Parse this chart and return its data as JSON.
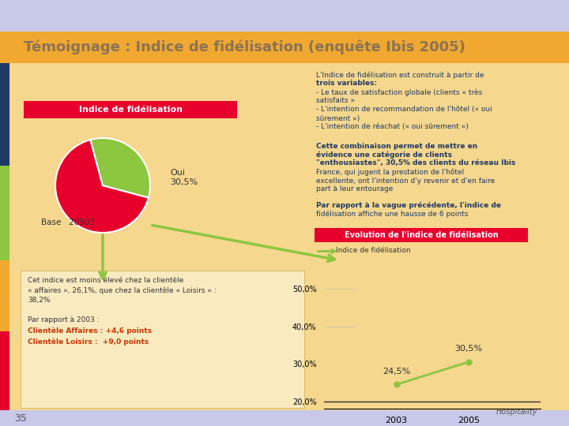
{
  "title": "Témoignage : Indice de fidélisation (enquête Ibis 2005)",
  "title_color": "#8B7355",
  "header_bg": "#C8C8E8",
  "main_bg": "#F5D78E",
  "slide_num": "35",
  "pie_label_red": "Indice de fidélisation",
  "pie_red": "#E8002D",
  "pie_green": "#8DC63F",
  "pie_oui_label": "Oui\n30,5%",
  "pie_base_label": "Base   20903",
  "right_text_lines": [
    "L'Indice de fidélisation est construit à partir de",
    "trois variables:",
    "- Le taux de satisfaction globale (clients « très",
    "satisfaits »",
    "- L'intention de recommandation de l'hôtel (« oui",
    "sûrement »)",
    "- L'intention de réachat (« oui sûrement »)"
  ],
  "right_text2_lines": [
    "Cette combinaison permet de mettre en",
    "évidence une catégorie de clients",
    "\"enthousiastes\", 30,5% des clients du réseau Ibis",
    "France, qui jugent la prestation de l'hôtel",
    "excellente, ont l'intention d'y revenir et d'en faire",
    "part à leur entourage"
  ],
  "right_text3_lines": [
    "Par rapport à la vague précédente, l'indice de",
    "fidélisation affiche une hausse de 6 points"
  ],
  "evolution_label": "Evolution de l'indice de fidélisation",
  "legend_line": "Indice de fidélisation",
  "chart_years": [
    2003,
    2005
  ],
  "chart_values": [
    24.5,
    30.5
  ],
  "chart_ylabels": [
    "20,0%",
    "30,0%",
    "40,0%",
    "50,0%"
  ],
  "chart_yvals": [
    20,
    30,
    40,
    50
  ],
  "bottom_text_lines": [
    "Cet indice est moins élevé chez la clientèle",
    "« affaires », 26,1%, que chez la clientèle « Loisirs » :",
    "38,2%"
  ],
  "bottom_text2_lines": [
    "Par rapport à 2003 :",
    "Clientèle Affaires : +4,6 points",
    "Clientèle Loisirs :  +9,0 points"
  ],
  "line_color": "#8DC63F",
  "arrow_color": "#8DC63F",
  "red_bg": "#E8002D",
  "white_text": "#FFFFFF",
  "dark_text": "#333333",
  "navy_text": "#1F3864",
  "bold_text_color": "#8B4513"
}
